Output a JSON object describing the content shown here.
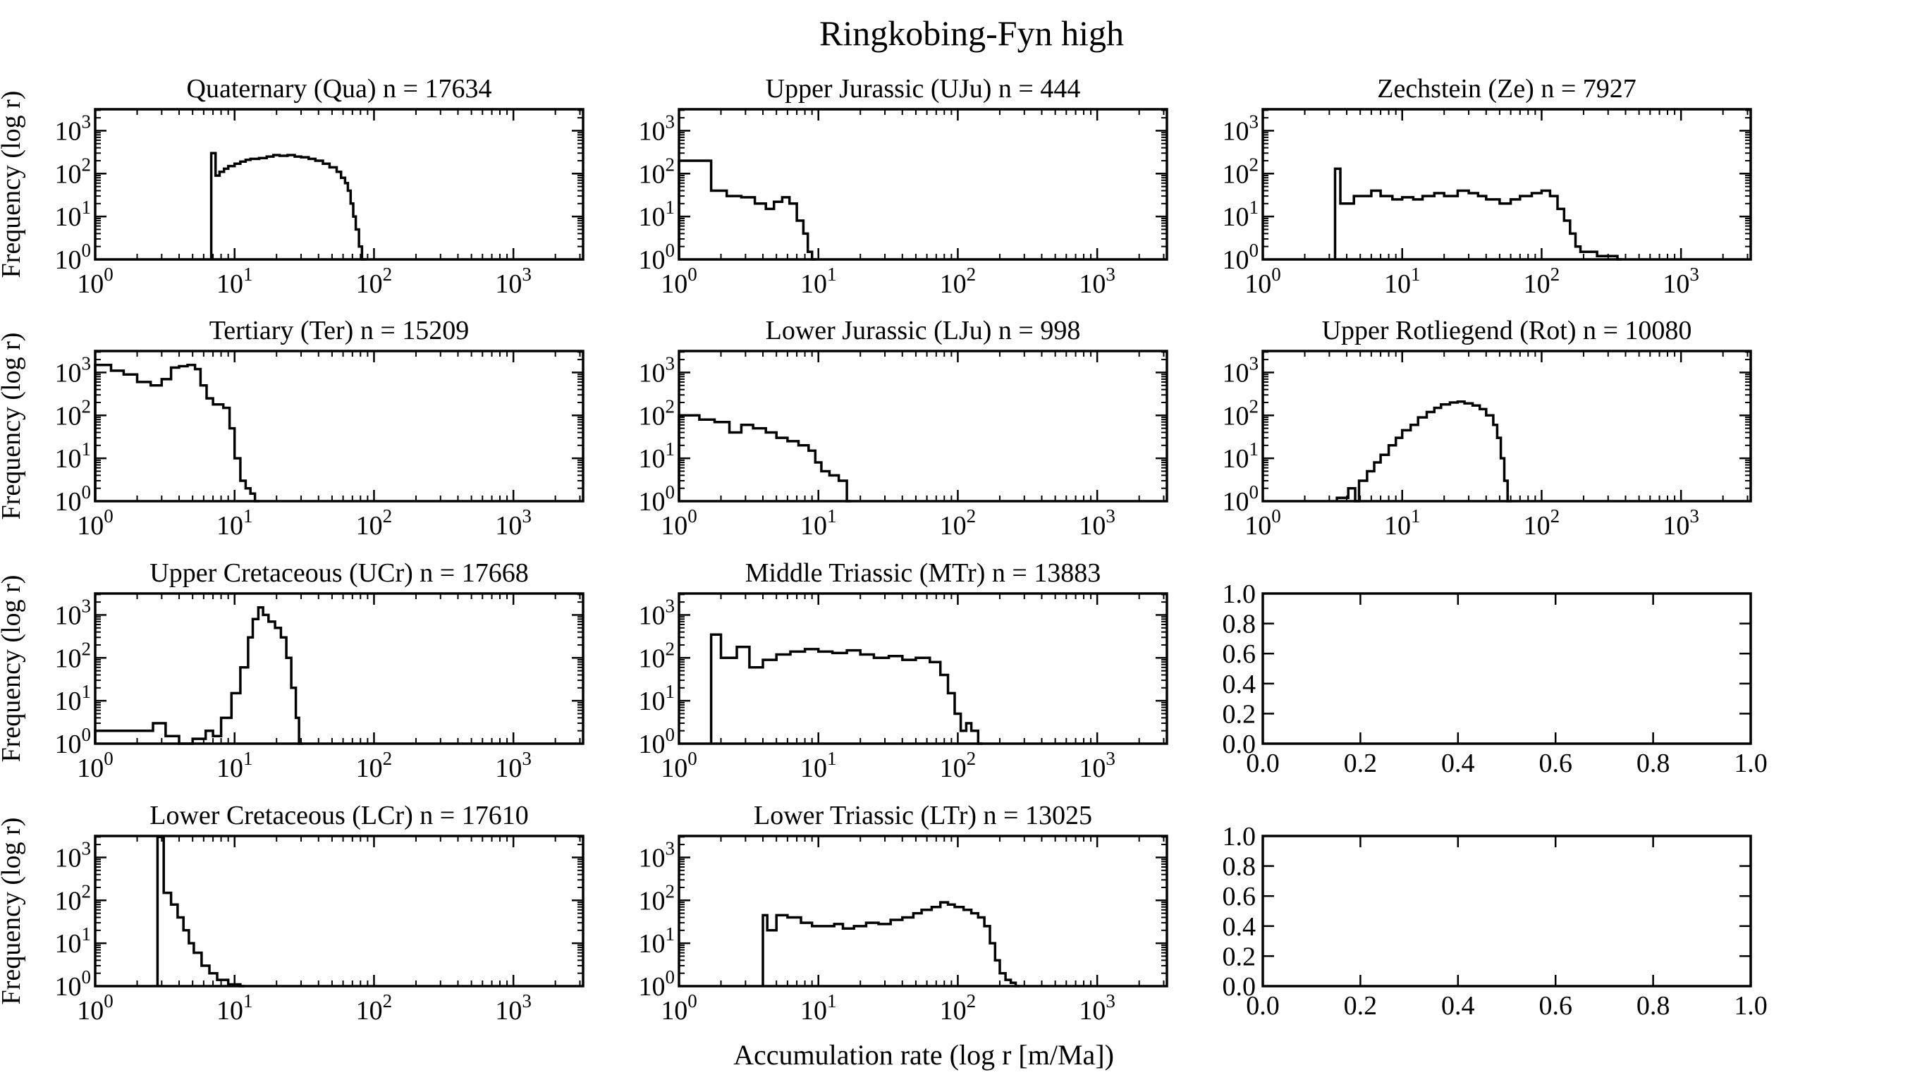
{
  "figure": {
    "title": "Ringkobing-Fyn high",
    "xlabel": "Accumulation rate (log r [m/Ma])",
    "ylabel": "Frequency (log r)",
    "line_color": "#000000"
  },
  "chart_data": [
    {
      "type": "histogram",
      "title": "Quaternary (Qua) n = 17634",
      "log": true,
      "xlim": [
        1,
        3162
      ],
      "ylim": [
        1,
        3162
      ],
      "xticks": [
        1,
        10,
        100,
        1000
      ],
      "yticks": [
        1,
        10,
        100,
        1000
      ],
      "bins": [
        [
          6.8,
          300
        ],
        [
          7.3,
          90
        ],
        [
          7.8,
          110
        ],
        [
          8.4,
          130
        ],
        [
          9,
          150
        ],
        [
          10,
          170
        ],
        [
          11,
          190
        ],
        [
          12,
          210
        ],
        [
          13,
          220
        ],
        [
          15,
          230
        ],
        [
          17,
          250
        ],
        [
          19,
          270
        ],
        [
          21,
          260
        ],
        [
          24,
          270
        ],
        [
          27,
          250
        ],
        [
          30,
          240
        ],
        [
          34,
          220
        ],
        [
          38,
          200
        ],
        [
          43,
          170
        ],
        [
          48,
          140
        ],
        [
          54,
          110
        ],
        [
          58,
          80
        ],
        [
          62,
          60
        ],
        [
          65,
          40
        ],
        [
          68,
          20
        ],
        [
          71,
          10
        ],
        [
          74,
          5
        ],
        [
          78,
          2
        ],
        [
          82,
          1
        ]
      ]
    },
    {
      "type": "histogram",
      "title": "Upper Jurassic (UJu) n = 444",
      "log": true,
      "xlim": [
        1,
        3162
      ],
      "ylim": [
        1,
        3162
      ],
      "xticks": [
        1,
        10,
        100,
        1000
      ],
      "yticks": [
        1,
        10,
        100,
        1000
      ],
      "bins": [
        [
          1,
          200
        ],
        [
          1.7,
          40
        ],
        [
          2.2,
          30
        ],
        [
          2.8,
          28
        ],
        [
          3.5,
          20
        ],
        [
          4.2,
          15
        ],
        [
          4.8,
          22
        ],
        [
          5.5,
          28
        ],
        [
          6.2,
          20
        ],
        [
          7,
          8
        ],
        [
          7.8,
          4
        ],
        [
          8.4,
          1.5
        ],
        [
          9,
          1
        ]
      ]
    },
    {
      "type": "histogram",
      "title": "Zechstein (Ze) n = 7927",
      "log": true,
      "xlim": [
        1,
        3162
      ],
      "ylim": [
        1,
        3162
      ],
      "xticks": [
        1,
        10,
        100,
        1000
      ],
      "yticks": [
        1,
        10,
        100,
        1000
      ],
      "bins": [
        [
          3.3,
          130
        ],
        [
          3.6,
          20
        ],
        [
          4.5,
          30
        ],
        [
          6,
          40
        ],
        [
          7,
          30
        ],
        [
          8.5,
          25
        ],
        [
          10,
          28
        ],
        [
          12,
          25
        ],
        [
          14,
          30
        ],
        [
          17,
          35
        ],
        [
          20,
          30
        ],
        [
          25,
          40
        ],
        [
          30,
          35
        ],
        [
          35,
          30
        ],
        [
          40,
          25
        ],
        [
          50,
          20
        ],
        [
          60,
          25
        ],
        [
          70,
          30
        ],
        [
          85,
          35
        ],
        [
          100,
          40
        ],
        [
          115,
          30
        ],
        [
          130,
          15
        ],
        [
          145,
          8
        ],
        [
          160,
          4
        ],
        [
          175,
          2
        ],
        [
          190,
          1.5
        ],
        [
          220,
          1.5
        ],
        [
          250,
          1.2
        ],
        [
          300,
          1.2
        ],
        [
          350,
          1
        ]
      ]
    },
    {
      "type": "histogram",
      "title": "Tertiary (Ter) n = 15209",
      "log": true,
      "xlim": [
        1,
        3162
      ],
      "ylim": [
        1,
        3162
      ],
      "xticks": [
        1,
        10,
        100,
        1000
      ],
      "yticks": [
        1,
        10,
        100,
        1000
      ],
      "bins": [
        [
          1,
          1500
        ],
        [
          1.3,
          1100
        ],
        [
          1.6,
          900
        ],
        [
          2,
          600
        ],
        [
          2.5,
          500
        ],
        [
          3,
          700
        ],
        [
          3.5,
          1300
        ],
        [
          4,
          1400
        ],
        [
          4.6,
          1500
        ],
        [
          5.2,
          1200
        ],
        [
          5.7,
          500
        ],
        [
          6.3,
          250
        ],
        [
          7,
          180
        ],
        [
          8.3,
          150
        ],
        [
          9.2,
          50
        ],
        [
          10,
          10
        ],
        [
          11,
          3
        ],
        [
          12,
          2
        ],
        [
          13,
          1.5
        ],
        [
          14,
          1
        ]
      ]
    },
    {
      "type": "histogram",
      "title": "Lower Jurassic (LJu) n = 998",
      "log": true,
      "xlim": [
        1,
        3162
      ],
      "ylim": [
        1,
        3162
      ],
      "xticks": [
        1,
        10,
        100,
        1000
      ],
      "yticks": [
        1,
        10,
        100,
        1000
      ],
      "bins": [
        [
          1,
          100
        ],
        [
          1.4,
          80
        ],
        [
          1.8,
          70
        ],
        [
          2.3,
          40
        ],
        [
          2.8,
          60
        ],
        [
          3.4,
          50
        ],
        [
          4.2,
          40
        ],
        [
          5,
          30
        ],
        [
          6,
          25
        ],
        [
          7.2,
          20
        ],
        [
          8.5,
          15
        ],
        [
          9.5,
          8
        ],
        [
          10.5,
          5
        ],
        [
          12,
          4
        ],
        [
          14,
          3
        ],
        [
          16,
          1
        ]
      ]
    },
    {
      "type": "histogram",
      "title": "Upper Rotliegend (Rot) n = 10080",
      "log": true,
      "xlim": [
        1,
        3162
      ],
      "ylim": [
        1,
        3162
      ],
      "xticks": [
        1,
        10,
        100,
        1000
      ],
      "yticks": [
        1,
        10,
        100,
        1000
      ],
      "bins": [
        [
          3.4,
          1.2
        ],
        [
          4.1,
          2
        ],
        [
          4.6,
          1
        ],
        [
          4.9,
          3
        ],
        [
          5.6,
          5
        ],
        [
          6.3,
          8
        ],
        [
          7,
          12
        ],
        [
          8,
          20
        ],
        [
          9,
          30
        ],
        [
          10,
          45
        ],
        [
          11.5,
          60
        ],
        [
          13,
          90
        ],
        [
          15,
          120
        ],
        [
          17,
          150
        ],
        [
          19,
          180
        ],
        [
          22,
          200
        ],
        [
          25,
          210
        ],
        [
          28,
          190
        ],
        [
          32,
          170
        ],
        [
          36,
          140
        ],
        [
          40,
          100
        ],
        [
          45,
          60
        ],
        [
          48,
          30
        ],
        [
          51,
          10
        ],
        [
          54,
          3
        ],
        [
          57,
          1
        ]
      ]
    },
    {
      "type": "histogram",
      "title": "Upper Cretaceous (UCr) n = 17668",
      "log": true,
      "xlim": [
        1,
        3162
      ],
      "ylim": [
        1,
        3162
      ],
      "xticks": [
        1,
        10,
        100,
        1000
      ],
      "yticks": [
        1,
        10,
        100,
        1000
      ],
      "bins": [
        [
          1,
          2
        ],
        [
          2.6,
          3
        ],
        [
          3.2,
          1.5
        ],
        [
          4,
          1
        ],
        [
          5,
          1.3
        ],
        [
          6.2,
          2
        ],
        [
          7,
          1.5
        ],
        [
          8,
          4
        ],
        [
          9.5,
          15
        ],
        [
          11,
          60
        ],
        [
          12.5,
          300
        ],
        [
          13.5,
          800
        ],
        [
          14.8,
          1500
        ],
        [
          16,
          1000
        ],
        [
          17.5,
          700
        ],
        [
          19.5,
          500
        ],
        [
          21.5,
          300
        ],
        [
          23.5,
          100
        ],
        [
          25.5,
          20
        ],
        [
          27.5,
          4
        ],
        [
          29,
          1
        ]
      ]
    },
    {
      "type": "histogram",
      "title": "Middle Triassic (MTr) n = 13883",
      "log": true,
      "xlim": [
        1,
        3162
      ],
      "ylim": [
        1,
        3162
      ],
      "xticks": [
        1,
        10,
        100,
        1000
      ],
      "yticks": [
        1,
        10,
        100,
        1000
      ],
      "bins": [
        [
          1.7,
          350
        ],
        [
          2,
          100
        ],
        [
          2.6,
          180
        ],
        [
          3.2,
          60
        ],
        [
          4,
          90
        ],
        [
          5,
          120
        ],
        [
          6.3,
          140
        ],
        [
          8,
          160
        ],
        [
          10,
          140
        ],
        [
          12.6,
          130
        ],
        [
          16,
          150
        ],
        [
          20,
          120
        ],
        [
          25,
          100
        ],
        [
          32,
          110
        ],
        [
          40,
          90
        ],
        [
          50,
          100
        ],
        [
          63,
          80
        ],
        [
          75,
          40
        ],
        [
          85,
          15
        ],
        [
          95,
          5
        ],
        [
          105,
          2
        ],
        [
          115,
          3
        ],
        [
          125,
          2
        ],
        [
          140,
          1
        ]
      ]
    },
    {
      "type": "empty",
      "xlim": [
        0,
        1
      ],
      "ylim": [
        0,
        1
      ],
      "xticks": [
        "0.0",
        "0.2",
        "0.4",
        "0.6",
        "0.8",
        "1.0"
      ],
      "yticks": [
        "0.0",
        "0.2",
        "0.4",
        "0.6",
        "0.8",
        "1.0"
      ]
    },
    {
      "type": "histogram",
      "title": "Lower Cretaceous (LCr) n = 17610",
      "log": true,
      "xlim": [
        1,
        3162
      ],
      "ylim": [
        1,
        3162
      ],
      "xticks": [
        1,
        10,
        100,
        1000
      ],
      "yticks": [
        1,
        10,
        100,
        1000
      ],
      "bins": [
        [
          2.8,
          3000
        ],
        [
          3.1,
          150
        ],
        [
          3.5,
          80
        ],
        [
          3.9,
          40
        ],
        [
          4.3,
          20
        ],
        [
          4.7,
          10
        ],
        [
          5.1,
          6
        ],
        [
          5.8,
          3
        ],
        [
          6.6,
          2
        ],
        [
          7.5,
          1.4
        ],
        [
          9,
          1.1
        ],
        [
          11,
          1
        ]
      ]
    },
    {
      "type": "histogram",
      "title": "Lower Triassic (LTr) n = 13025",
      "log": true,
      "xlim": [
        1,
        3162
      ],
      "ylim": [
        1,
        3162
      ],
      "xticks": [
        1,
        10,
        100,
        1000
      ],
      "yticks": [
        1,
        10,
        100,
        1000
      ],
      "bins": [
        [
          4,
          45
        ],
        [
          4.3,
          20
        ],
        [
          5,
          45
        ],
        [
          6,
          40
        ],
        [
          7.5,
          30
        ],
        [
          9,
          25
        ],
        [
          11,
          25
        ],
        [
          13,
          28
        ],
        [
          15,
          22
        ],
        [
          18,
          25
        ],
        [
          22,
          30
        ],
        [
          27,
          28
        ],
        [
          33,
          35
        ],
        [
          40,
          40
        ],
        [
          48,
          50
        ],
        [
          55,
          60
        ],
        [
          65,
          70
        ],
        [
          75,
          90
        ],
        [
          85,
          80
        ],
        [
          95,
          70
        ],
        [
          110,
          60
        ],
        [
          125,
          50
        ],
        [
          140,
          40
        ],
        [
          155,
          25
        ],
        [
          170,
          10
        ],
        [
          185,
          4
        ],
        [
          200,
          2
        ],
        [
          220,
          1.4
        ],
        [
          240,
          1.2
        ],
        [
          260,
          1
        ]
      ]
    },
    {
      "type": "empty",
      "xlim": [
        0,
        1
      ],
      "ylim": [
        0,
        1
      ],
      "xticks": [
        "0.0",
        "0.2",
        "0.4",
        "0.6",
        "0.8",
        "1.0"
      ],
      "yticks": [
        "0.0",
        "0.2",
        "0.4",
        "0.6",
        "0.8",
        "1.0"
      ]
    }
  ]
}
